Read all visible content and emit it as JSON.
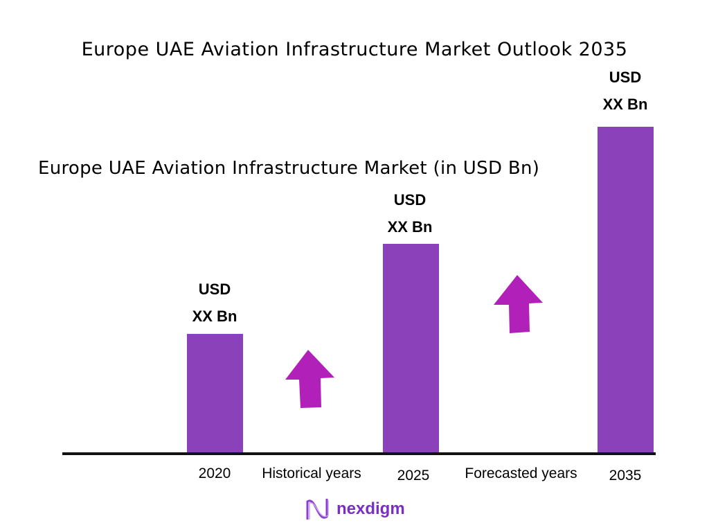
{
  "chart_data": {
    "type": "bar",
    "title": "Europe UAE Aviation Infrastructure Market Outlook 2035",
    "subtitle": " Europe UAE Aviation Infrastructure Market (in USD Bn)",
    "categories": [
      "2020",
      "2025",
      "2035"
    ],
    "data_labels": [
      {
        "line1": "USD",
        "line2": "XX Bn"
      },
      {
        "line1": "USD",
        "line2": "XX Bn"
      },
      {
        "line1": "USD",
        "line2": "XX Bn"
      }
    ],
    "period_labels": [
      "Historical years",
      "Forecasted years"
    ],
    "grid": false,
    "bar_color": "#8B41B9",
    "arrow_color": "#B220BA"
  },
  "brand": {
    "name": "nexdigm",
    "color": "#7a2fc4"
  }
}
